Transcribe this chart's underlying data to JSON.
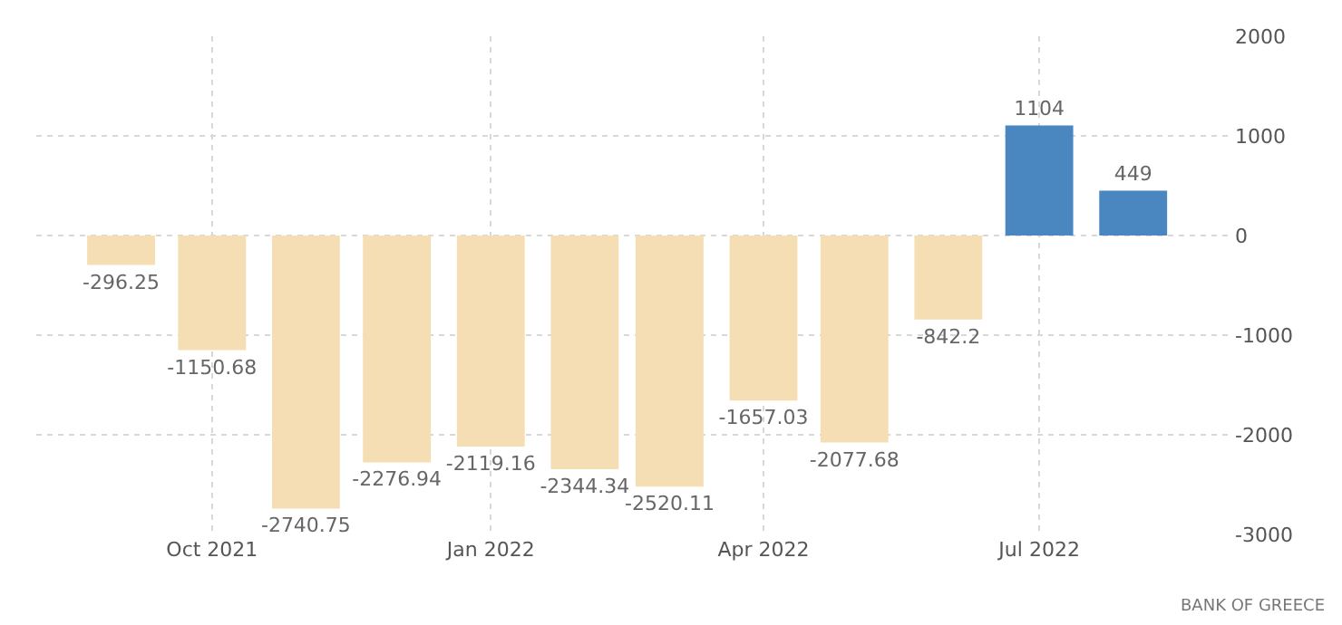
{
  "chart_data": {
    "type": "bar",
    "x": [
      "2021-09",
      "2021-10",
      "2021-11",
      "2021-12",
      "2022-01",
      "2022-02",
      "2022-03",
      "2022-04",
      "2022-05",
      "2022-06",
      "2022-07",
      "2022-08"
    ],
    "values": [
      -296.25,
      -1150.68,
      -2740.75,
      -2276.94,
      -2119.16,
      -2344.34,
      -2520.11,
      -1657.03,
      -2077.68,
      -842.2,
      1104,
      449
    ],
    "colors": [
      "#f5deb3",
      "#f5deb3",
      "#f5deb3",
      "#f5deb3",
      "#f5deb3",
      "#f5deb3",
      "#f5deb3",
      "#f5deb3",
      "#f5deb3",
      "#f5deb3",
      "#4a86bf",
      "#4a86bf"
    ],
    "data_labels": true,
    "xlim": [
      "2021-08-04",
      "2022-09-03"
    ],
    "xticks": [
      {
        "value": "2021-10",
        "label": "Oct 2021"
      },
      {
        "value": "2022-01",
        "label": "Jan 2022"
      },
      {
        "value": "2022-04",
        "label": "Apr 2022"
      },
      {
        "value": "2022-07",
        "label": "Jul 2022"
      }
    ],
    "ylim": [
      -3000,
      2000
    ],
    "yticks": [
      -3000,
      -2000,
      -1000,
      0,
      1000,
      2000
    ],
    "grid": true,
    "legend": false,
    "annotations": [
      "BANK OF GREECE"
    ]
  }
}
